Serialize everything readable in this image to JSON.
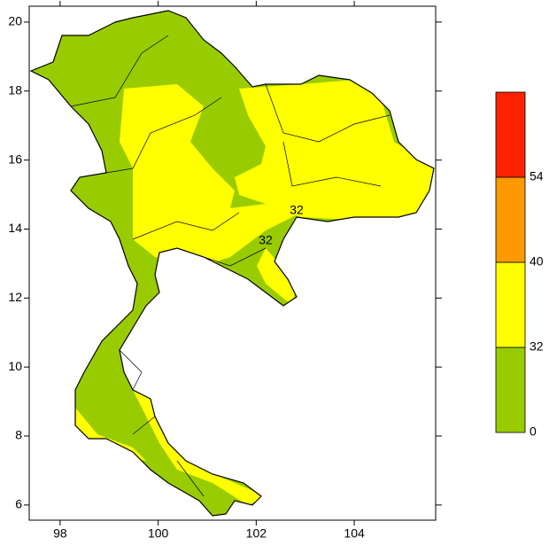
{
  "map": {
    "xlim": [
      97.37,
      105.66
    ],
    "ylim": [
      5.56,
      20.46
    ],
    "xticks": [
      98,
      100,
      102,
      104
    ],
    "yticks": [
      6,
      8,
      10,
      12,
      14,
      16,
      18,
      20
    ],
    "colorbar": {
      "bounds": [
        0,
        32,
        40,
        54,
        null
      ],
      "colors": [
        "#99cc00",
        "#ffff00",
        "#ff9900",
        "#ff2200"
      ]
    },
    "contour_labels": [
      "32",
      "32"
    ]
  }
}
